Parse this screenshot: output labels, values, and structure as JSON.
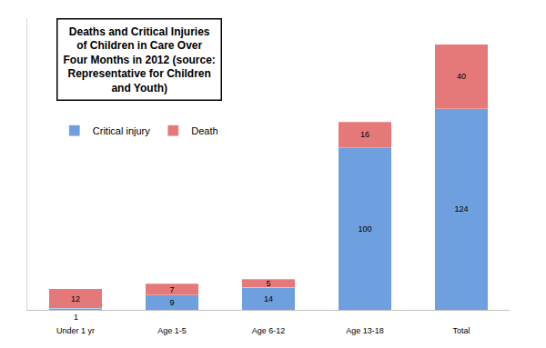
{
  "chart_data": {
    "type": "bar",
    "title": "Deaths and Critical Injuries of Children in Care Over Four Months in 2012 (source: Representative for Children and Youth)",
    "categories": [
      "Under 1 yr",
      "Age 1-5",
      "Age 6-12",
      "Age 13-18",
      "Total"
    ],
    "series": [
      {
        "name": "Critical injury",
        "color": "#6E9FDE",
        "values": [
          1,
          9,
          14,
          100,
          124
        ]
      },
      {
        "name": "Death",
        "color": "#E57878",
        "values": [
          12,
          7,
          5,
          16,
          40
        ]
      }
    ],
    "ylim": [
      0,
      180
    ],
    "stacked": true,
    "data_labels": true,
    "legend": "upper left",
    "tick_labels": "x",
    "grid": false
  }
}
